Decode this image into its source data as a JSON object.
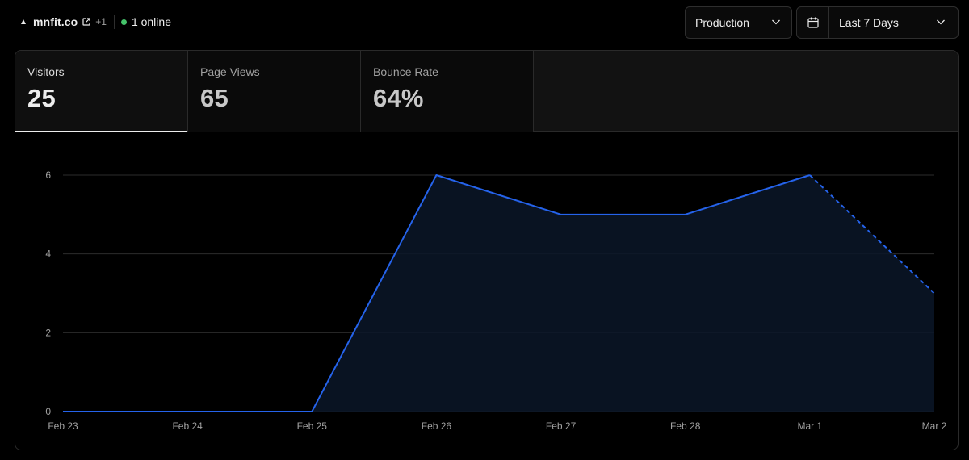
{
  "header": {
    "site_name": "mnfit.co",
    "extra_count": "+1",
    "online_text": "1 online",
    "environment": "Production",
    "date_range": "Last 7 Days"
  },
  "icons": {
    "site": "triangle-icon",
    "external": "external-link-icon",
    "status": "online-dot-icon",
    "env_chevron": "chevron-down-icon",
    "calendar": "calendar-icon",
    "date_chevron": "chevron-down-icon"
  },
  "colors": {
    "accent": "#3b82f6",
    "line": "#2563eb",
    "online": "#45c36a"
  },
  "tabs": [
    {
      "label": "Visitors",
      "value": "25",
      "active": true
    },
    {
      "label": "Page Views",
      "value": "65",
      "active": false
    },
    {
      "label": "Bounce Rate",
      "value": "64%",
      "active": false
    }
  ],
  "chart_data": {
    "type": "area",
    "title": "",
    "xlabel": "",
    "ylabel": "",
    "categories": [
      "Feb 23",
      "Feb 24",
      "Feb 25",
      "Feb 26",
      "Feb 27",
      "Feb 28",
      "Mar 1",
      "Mar 2"
    ],
    "series": [
      {
        "values": [
          0,
          0,
          0,
          6,
          5,
          5,
          6,
          3
        ]
      }
    ],
    "partial_last_point": true,
    "y_ticks": [
      0,
      2,
      4,
      6
    ],
    "ylim": [
      0,
      6
    ],
    "grid": true,
    "legend": "none"
  }
}
